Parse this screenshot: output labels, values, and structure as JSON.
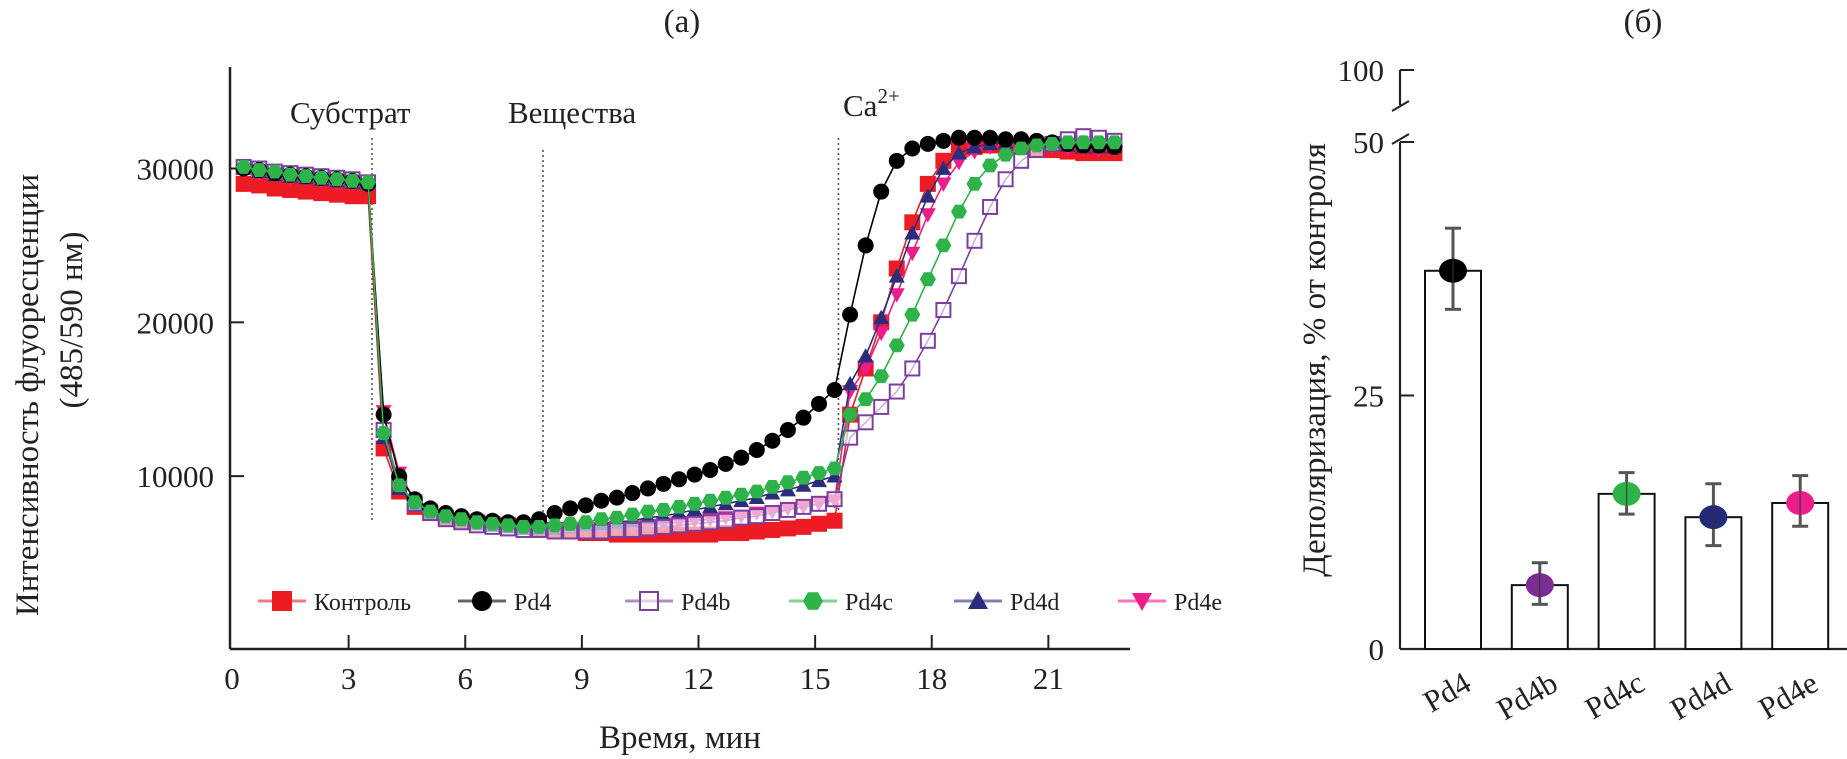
{
  "chart_data": [
    {
      "panel_label": "(а)",
      "type": "line",
      "xlabel": "Время, мин",
      "ylabel_line1": "Интенсивность флуоресценции",
      "ylabel_line2": "(485/590 нм)",
      "xlim": [
        0,
        23.1
      ],
      "ylim": [
        -1240,
        36600
      ],
      "xticks": [
        0,
        3,
        6,
        9,
        12,
        15,
        18,
        21
      ],
      "xtick_labels": [
        "0",
        "3",
        "6",
        "9",
        "12",
        "15",
        "18",
        "21"
      ],
      "yticks": [
        10000,
        20000,
        30000
      ],
      "ytick_labels": [
        "10000",
        "20000",
        "30000"
      ],
      "grid": false,
      "legend_placement": "bottom",
      "annotations": [
        {
          "text": "Субстрат",
          "x": 3.6
        },
        {
          "text": "Вещества",
          "x": 8.0
        },
        {
          "text": "Ca",
          "sup": "2+",
          "x": 15.6
        }
      ],
      "x": [
        0.3,
        0.7,
        1.1,
        1.5,
        1.9,
        2.3,
        2.7,
        3.1,
        3.5,
        3.9,
        4.3,
        4.7,
        5.1,
        5.5,
        5.9,
        6.3,
        6.7,
        7.1,
        7.5,
        7.9,
        8.3,
        8.7,
        9.1,
        9.5,
        9.9,
        10.3,
        10.7,
        11.1,
        11.5,
        11.9,
        12.3,
        12.7,
        13.1,
        13.5,
        13.9,
        14.3,
        14.7,
        15.1,
        15.5,
        15.9,
        16.3,
        16.7,
        17.1,
        17.5,
        17.9,
        18.3,
        18.7,
        19.1,
        19.5,
        19.9,
        20.3,
        20.7,
        21.1,
        21.5,
        21.9,
        22.3,
        22.7
      ],
      "series": [
        {
          "name": "Контроль",
          "color": "#ed1c24",
          "marker": "filled-square",
          "values": [
            29000,
            28900,
            28700,
            28600,
            28500,
            28400,
            28300,
            28200,
            28200,
            11800,
            9000,
            8000,
            7600,
            7300,
            7100,
            7000,
            6900,
            6800,
            6700,
            6600,
            6500,
            6400,
            6300,
            6300,
            6200,
            6200,
            6200,
            6200,
            6200,
            6200,
            6200,
            6300,
            6300,
            6400,
            6500,
            6600,
            6700,
            6900,
            7100,
            14000,
            17000,
            20000,
            23500,
            26500,
            29000,
            30500,
            31200,
            31400,
            31500,
            31500,
            31400,
            31300,
            31200,
            31100,
            31000,
            31000,
            31000
          ]
        },
        {
          "name": "Pd4",
          "color": "#000000",
          "marker": "filled-circle",
          "values": [
            30000,
            29900,
            29700,
            29600,
            29500,
            29400,
            29300,
            29200,
            29000,
            14000,
            10000,
            8500,
            7900,
            7600,
            7400,
            7200,
            7100,
            7000,
            7000,
            7200,
            7600,
            7900,
            8100,
            8400,
            8600,
            8900,
            9200,
            9500,
            9800,
            10100,
            10400,
            10800,
            11200,
            11700,
            12300,
            13000,
            13800,
            14700,
            15600,
            20500,
            25000,
            28500,
            30500,
            31300,
            31600,
            31800,
            32000,
            32000,
            32000,
            31900,
            31900,
            31800,
            31700,
            31600,
            31500,
            31500,
            31400
          ]
        },
        {
          "name": "Pd4b",
          "color": "#7b3fa0",
          "marker": "open-square",
          "values": [
            30100,
            30000,
            29800,
            29700,
            29600,
            29500,
            29400,
            29300,
            29100,
            13000,
            9500,
            8200,
            7600,
            7200,
            7000,
            6800,
            6700,
            6600,
            6500,
            6500,
            6400,
            6400,
            6400,
            6400,
            6500,
            6500,
            6600,
            6700,
            6800,
            6900,
            7000,
            7100,
            7300,
            7400,
            7600,
            7800,
            8000,
            8200,
            8500,
            12500,
            13500,
            14500,
            15500,
            17000,
            18800,
            20800,
            23000,
            25300,
            27500,
            29300,
            30500,
            31200,
            31600,
            31900,
            32100,
            32000,
            31800
          ]
        },
        {
          "name": "Pd4c",
          "color": "#2db34a",
          "marker": "filled-hexagon",
          "values": [
            30100,
            29900,
            29800,
            29600,
            29500,
            29400,
            29300,
            29200,
            29100,
            12800,
            9400,
            8300,
            7700,
            7400,
            7200,
            7000,
            6900,
            6800,
            6700,
            6700,
            6800,
            6900,
            7000,
            7200,
            7300,
            7500,
            7700,
            7800,
            8000,
            8200,
            8400,
            8600,
            8800,
            9000,
            9300,
            9600,
            9900,
            10200,
            10500,
            14000,
            15000,
            16500,
            18500,
            20500,
            22800,
            25000,
            27200,
            29000,
            30200,
            30900,
            31300,
            31500,
            31600,
            31700,
            31700,
            31700,
            31700
          ]
        },
        {
          "name": "Pd4d",
          "color": "#2b2d7c",
          "marker": "filled-triangle-up",
          "values": [
            30000,
            29800,
            29600,
            29500,
            29400,
            29300,
            29200,
            29100,
            29000,
            12500,
            9200,
            8100,
            7600,
            7300,
            7100,
            6900,
            6800,
            6700,
            6600,
            6600,
            6600,
            6700,
            6800,
            6900,
            7000,
            7100,
            7300,
            7400,
            7600,
            7800,
            8000,
            8200,
            8400,
            8600,
            8900,
            9100,
            9400,
            9700,
            10000,
            16000,
            17800,
            20300,
            23000,
            25800,
            28200,
            30000,
            31000,
            31400,
            31600,
            31700,
            31700,
            31600,
            31500,
            31500,
            31400,
            31400,
            31400
          ]
        },
        {
          "name": "Pd4e",
          "color": "#ec1e8c",
          "marker": "filled-triangle-down",
          "values": [
            29900,
            29700,
            29600,
            29400,
            29300,
            29200,
            29100,
            29000,
            28900,
            14200,
            10200,
            8400,
            7800,
            7400,
            7200,
            7000,
            6900,
            6800,
            6700,
            6600,
            6600,
            6600,
            6600,
            6600,
            6700,
            6700,
            6800,
            6900,
            7000,
            7100,
            7200,
            7300,
            7400,
            7600,
            7700,
            7900,
            8000,
            8200,
            8400,
            15500,
            17000,
            19300,
            21800,
            24500,
            27000,
            29000,
            30400,
            31100,
            31400,
            31500,
            31500,
            31400,
            31400,
            31300,
            31300,
            31200,
            31200
          ]
        }
      ]
    },
    {
      "panel_label": "(б)",
      "type": "bar",
      "ylabel": "Деполяризация, % от контроля",
      "ylim": [
        0,
        50
      ],
      "axis_break": true,
      "yticks": [
        0,
        25,
        50,
        100
      ],
      "ytick_labels": [
        "0",
        "25",
        "50",
        "100"
      ],
      "grid": false,
      "categories": [
        "Pd4",
        "Pd4b",
        "Pd4c",
        "Pd4d",
        "Pd4e"
      ],
      "values": [
        37.3,
        6.3,
        15.3,
        13.0,
        14.4
      ],
      "error_upper": [
        41.5,
        8.5,
        17.4,
        16.3,
        17.1
      ],
      "error_lower": [
        33.5,
        4.4,
        13.3,
        10.2,
        12.1
      ],
      "point_colors": [
        "#000000",
        "#7b2d94",
        "#2db34a",
        "#232a78",
        "#ec1e8c"
      ]
    }
  ]
}
